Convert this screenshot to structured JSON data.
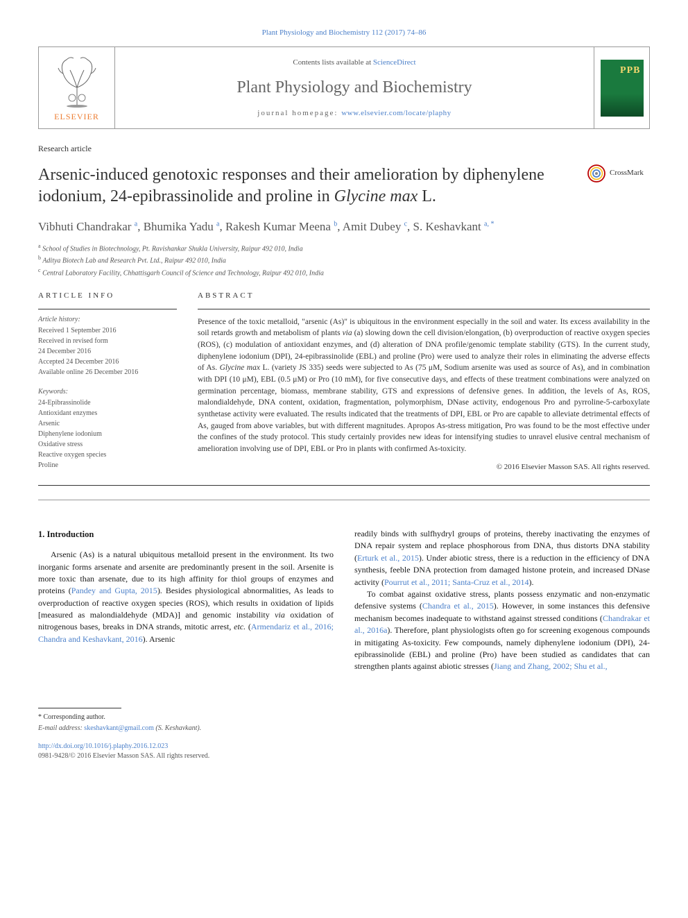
{
  "top_citation": "Plant Physiology and Biochemistry 112 (2017) 74–86",
  "header": {
    "elsevier": "ELSEVIER",
    "contents_prefix": "Contents lists available at ",
    "contents_link": "ScienceDirect",
    "journal_name": "Plant Physiology and Biochemistry",
    "homepage_prefix": "journal homepage: ",
    "homepage_link": "www.elsevier.com/locate/plaphy",
    "cover_abbr": "PPB"
  },
  "article_type": "Research article",
  "title_pre": "Arsenic-induced genotoxic responses and their amelioration by diphenylene iodonium, 24-epibrassinolide and proline in ",
  "title_species": "Glycine max",
  "title_post": " L.",
  "crossmark": "CrossMark",
  "authors": [
    {
      "name": "Vibhuti Chandrakar",
      "aff": "a"
    },
    {
      "name": "Bhumika Yadu",
      "aff": "a"
    },
    {
      "name": "Rakesh Kumar Meena",
      "aff": "b"
    },
    {
      "name": "Amit Dubey",
      "aff": "c"
    },
    {
      "name": "S. Keshavkant",
      "aff": "a",
      "corr": true
    }
  ],
  "affiliations": [
    {
      "sup": "a",
      "text": "School of Studies in Biotechnology, Pt. Ravishankar Shukla University, Raipur 492 010, India"
    },
    {
      "sup": "b",
      "text": "Aditya Biotech Lab and Research Pvt. Ltd., Raipur 492 010, India"
    },
    {
      "sup": "c",
      "text": "Central Laboratory Facility, Chhattisgarh Council of Science and Technology, Raipur 492 010, India"
    }
  ],
  "info": {
    "heading": "ARTICLE INFO",
    "history_label": "Article history:",
    "history": [
      "Received 1 September 2016",
      "Received in revised form",
      "24 December 2016",
      "Accepted 24 December 2016",
      "Available online 26 December 2016"
    ],
    "keywords_label": "Keywords:",
    "keywords": [
      "24-Epibrassinolide",
      "Antioxidant enzymes",
      "Arsenic",
      "Diphenylene iodonium",
      "Oxidative stress",
      "Reactive oxygen species",
      "Proline"
    ]
  },
  "abstract": {
    "heading": "ABSTRACT",
    "text_parts": {
      "p1": "Presence of the toxic metalloid, \"arsenic (As)\" is ubiquitous in the environment especially in the soil and water. Its excess availability in the soil retards growth and metabolism of plants ",
      "via1": "via",
      "p2": " (a) slowing down the cell division/elongation, (b) overproduction of reactive oxygen species (ROS), (c) modulation of antioxidant enzymes, and (d) alteration of DNA profile/genomic template stability (GTS). In the current study, diphenylene iodonium (DPI), 24-epibrassinolide (EBL) and proline (Pro) were used to analyze their roles in eliminating the adverse effects of As. ",
      "species": "Glycine max",
      "p3": " L. (variety JS 335) seeds were subjected to As (75 μM, Sodium arsenite was used as source of As), and in combination with DPI (10 μM), EBL (0.5 μM) or Pro (10 mM), for five consecutive days, and effects of these treatment combinations were analyzed on germination percentage, biomass, membrane stability, GTS and expressions of defensive genes. In addition, the levels of As, ROS, malondialdehyde, DNA content, oxidation, fragmentation, polymorphism, DNase activity, endogenous Pro and pyrroline-5-carboxylate synthetase activity were evaluated. The results indicated that the treatments of DPI, EBL or Pro are capable to alleviate detrimental effects of As, gauged from above variables, but with different magnitudes. Apropos As-stress mitigation, Pro was found to be the most effective under the confines of the study protocol. This study certainly provides new ideas for intensifying studies to unravel elusive central mechanism of amelioration involving use of DPI, EBL or Pro in plants with confirmed As-toxicity."
    },
    "copyright": "© 2016 Elsevier Masson SAS. All rights reserved."
  },
  "intro": {
    "heading": "1. Introduction",
    "col1": {
      "p1_a": "Arsenic (As) is a natural ubiquitous metalloid present in the environment. Its two inorganic forms arsenate and arsenite are predominantly present in the soil. Arsenite is more toxic than arsenate, due to its high affinity for thiol groups of enzymes and proteins (",
      "ref1": "Pandey and Gupta, 2015",
      "p1_b": "). Besides physiological abnormalities, As leads to overproduction of reactive oxygen species (ROS), which results in oxidation of lipids [measured as malondialdehyde (MDA)] and genomic instability ",
      "via": "via",
      "p1_c": " oxidation of nitrogenous bases, breaks in DNA strands, mitotic arrest, ",
      "etc": "etc.",
      "p1_d": " (",
      "ref2": "Armendariz et al., 2016; Chandra and Keshavkant, 2016",
      "p1_e": "). Arsenic"
    },
    "col2": {
      "p1_a": "readily binds with sulfhydryl groups of proteins, thereby inactivating the enzymes of DNA repair system and replace phosphorous from DNA, thus distorts DNA stability (",
      "ref1": "Erturk et al., 2015",
      "p1_b": "). Under abiotic stress, there is a reduction in the efficiency of DNA synthesis, feeble DNA protection from damaged histone protein, and increased DNase activity (",
      "ref2": "Pourrut et al., 2011; Santa-Cruz et al., 2014",
      "p1_c": ").",
      "p2_a": "To combat against oxidative stress, plants possess enzymatic and non-enzymatic defensive systems (",
      "ref3": "Chandra et al., 2015",
      "p2_b": "). However, in some instances this defensive mechanism becomes inadequate to withstand against stressed conditions (",
      "ref4": "Chandrakar et al., 2016a",
      "p2_c": "). Therefore, plant physiologists often go for screening exogenous compounds in mitigating As-toxicity. Few compounds, namely diphenylene iodonium (DPI), 24-epibrassinolide (EBL) and proline (Pro) have been studied as candidates that can strengthen plants against abiotic stresses (",
      "ref5": "Jiang and Zhang, 2002; Shu et al.,"
    }
  },
  "footer": {
    "corr_label": "* Corresponding author.",
    "email_label": "E-mail address: ",
    "email": "skeshavkant@gmail.com",
    "email_name": " (S. Keshavkant).",
    "doi": "http://dx.doi.org/10.1016/j.plaphy.2016.12.023",
    "issn": "0981-9428/© 2016 Elsevier Masson SAS. All rights reserved."
  },
  "colors": {
    "link": "#4a7fc9",
    "elsevier_orange": "#ed7d31",
    "cover_green": "#1a7a3e",
    "cover_gold": "#f5d76e",
    "text_gray": "#555555"
  }
}
